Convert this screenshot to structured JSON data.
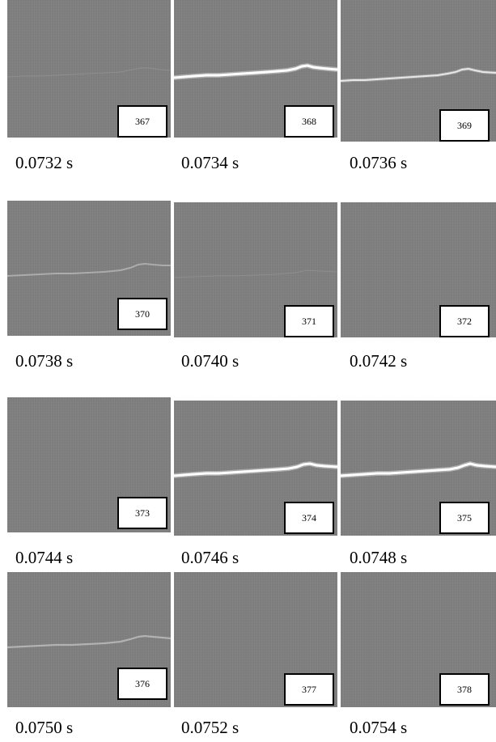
{
  "frames": [
    {
      "number": "367",
      "time": "0.0732 s",
      "arc": "faint"
    },
    {
      "number": "368",
      "time": "0.0734 s",
      "arc": "bright"
    },
    {
      "number": "369",
      "time": "0.0736 s",
      "arc": "medium"
    },
    {
      "number": "370",
      "time": "0.0738 s",
      "arc": "dim"
    },
    {
      "number": "371",
      "time": "0.0740 s",
      "arc": "faint"
    },
    {
      "number": "372",
      "time": "0.0742 s",
      "arc": "none"
    },
    {
      "number": "373",
      "time": "0.0744 s",
      "arc": "none"
    },
    {
      "number": "374",
      "time": "0.0746 s",
      "arc": "bright"
    },
    {
      "number": "375",
      "time": "0.0748 s",
      "arc": "bright"
    },
    {
      "number": "376",
      "time": "0.0750 s",
      "arc": "dim"
    },
    {
      "number": "377",
      "time": "0.0752 s",
      "arc": "none"
    },
    {
      "number": "378",
      "time": "0.0754 s",
      "arc": "none"
    }
  ],
  "colors": {
    "background": "#808080",
    "arc": "#ffffff",
    "label_border": "#000000"
  }
}
